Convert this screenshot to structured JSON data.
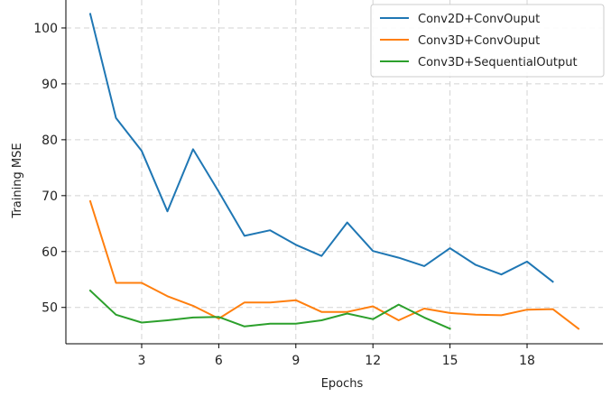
{
  "chart_data": {
    "type": "line",
    "title": "",
    "xlabel": "Epochs",
    "ylabel": "Training MSE",
    "xlim": [
      0.05,
      20.95
    ],
    "ylim": [
      43.5,
      105
    ],
    "xticks": [
      3,
      6,
      9,
      12,
      15,
      18
    ],
    "yticks": [
      50,
      60,
      70,
      80,
      90,
      100
    ],
    "grid": true,
    "legend_position": "top-right",
    "series": [
      {
        "name": "Conv2D+ConvOuput",
        "color": "#1f77b4",
        "x": [
          1,
          2,
          3,
          4,
          5,
          6,
          7,
          8,
          9,
          10,
          11,
          12,
          13,
          14,
          15,
          16,
          17,
          18,
          19
        ],
        "y": [
          102.5,
          83.9,
          78.0,
          67.2,
          78.3,
          70.7,
          62.8,
          63.8,
          61.2,
          59.2,
          65.2,
          60.1,
          58.9,
          57.4,
          60.6,
          57.6,
          55.9,
          58.2,
          54.6
        ]
      },
      {
        "name": "Conv3D+ConvOuput",
        "color": "#ff7f0e",
        "x": [
          1,
          2,
          3,
          4,
          5,
          6,
          7,
          8,
          9,
          10,
          11,
          12,
          13,
          14,
          15,
          16,
          17,
          18,
          19,
          20
        ],
        "y": [
          69.0,
          54.4,
          54.4,
          52.0,
          50.3,
          48.0,
          50.9,
          50.9,
          51.3,
          49.2,
          49.2,
          50.2,
          47.7,
          49.8,
          49.0,
          48.7,
          48.6,
          49.6,
          49.7,
          46.2
        ]
      },
      {
        "name": "Conv3D+SequentialOutput",
        "color": "#2ca02c",
        "x": [
          1,
          2,
          3,
          4,
          5,
          6,
          7,
          8,
          9,
          10,
          11,
          12,
          13,
          14,
          15
        ],
        "y": [
          53.0,
          48.7,
          47.3,
          47.7,
          48.2,
          48.3,
          46.6,
          47.1,
          47.1,
          47.7,
          48.9,
          47.9,
          50.5,
          48.2,
          46.2
        ]
      }
    ]
  }
}
